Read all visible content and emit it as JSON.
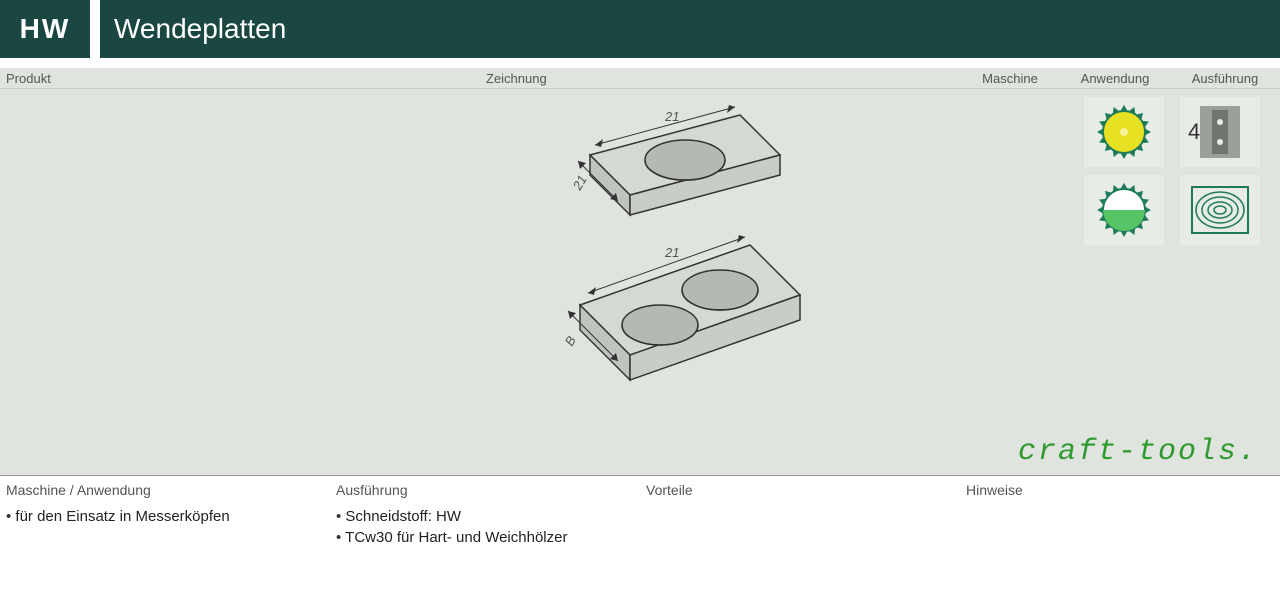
{
  "header": {
    "code": "HW",
    "title": "Wendeplatten"
  },
  "labels": {
    "produkt": "Produkt",
    "zeichnung": "Zeichnung",
    "maschine": "Maschine",
    "anwendung": "Anwendung",
    "ausfuehrung": "Ausführung"
  },
  "drawing": {
    "plate1": {
      "dim_a": "21",
      "dim_b": "21"
    },
    "plate2": {
      "dim_a": "21",
      "dim_b": "B"
    },
    "colors": {
      "stroke": "#333333",
      "fill_top": "#d5d9d3",
      "fill_side": "#bfc4be",
      "hole_fill": "#b4b9b2"
    }
  },
  "icons": {
    "saw_yellow": {
      "outer": "#1f7a5a",
      "inner": "#e8e022",
      "center": "#f6f29a"
    },
    "saw_green": {
      "outer": "#1f7a5a",
      "half": "#55c565",
      "bg": "#ffffff"
    },
    "plate_icon": {
      "frame": "#9aa09a",
      "plate": "#6f756f",
      "hole": "#e8ece7",
      "number": "4"
    },
    "wood_icon": {
      "stroke": "#1f7a5a"
    }
  },
  "brand": "craft-tools.",
  "info": {
    "col1": {
      "title": "Maschine / Anwendung",
      "items": [
        "für den Einsatz in Messerköpfen"
      ]
    },
    "col2": {
      "title": "Ausführung",
      "items": [
        "Schneidstoff: HW",
        "TCw30 für Hart- und Weichhölzer"
      ]
    },
    "col3": {
      "title": "Vorteile",
      "items": []
    },
    "col4": {
      "title": "Hinweise",
      "items": []
    }
  }
}
